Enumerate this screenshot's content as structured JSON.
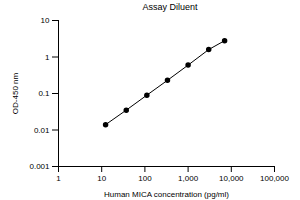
{
  "chart_data": {
    "type": "line",
    "title": "Assay Diluent",
    "x_label": "Human MICA concentration (pg/ml)",
    "y_label": "OD-450 nm",
    "log": true,
    "marker": "circle",
    "color": "#000000",
    "x": [
      12.3,
      37,
      111,
      333,
      1000,
      3000,
      7000
    ],
    "values": [
      0.014,
      0.035,
      0.09,
      0.23,
      0.6,
      1.6,
      2.8
    ],
    "xlim": [
      1,
      100000
    ],
    "xticks": [
      1,
      10,
      100,
      {
        "value": 1000,
        "label": "1,000"
      },
      {
        "value": 10000,
        "label": "10,000"
      },
      {
        "value": 100000,
        "label": "100,000"
      }
    ],
    "ylim": [
      0.001,
      10
    ],
    "yticks": [
      0.001,
      0.01,
      0.1,
      1,
      10
    ],
    "grid": false
  }
}
